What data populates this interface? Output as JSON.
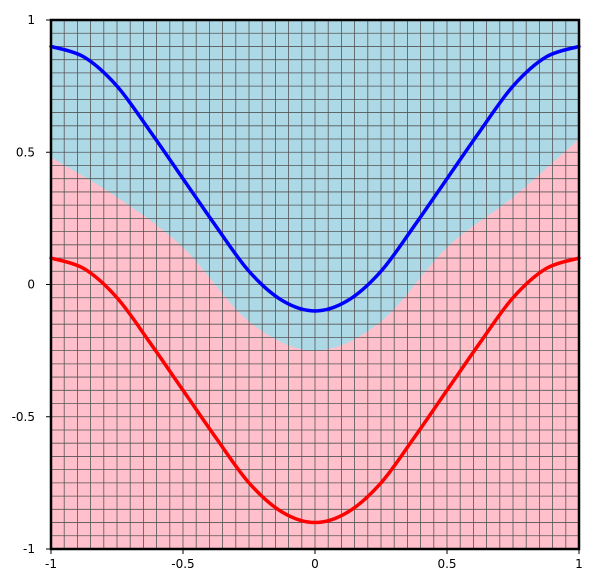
{
  "chart_data": {
    "type": "line",
    "title": "",
    "xlabel": "",
    "ylabel": "",
    "xlim": [
      -1,
      1
    ],
    "ylim": [
      -1,
      1
    ],
    "grid": true,
    "grid_step": 0.05,
    "x_ticks": [
      -1,
      -0.5,
      0,
      0.5,
      1
    ],
    "x_tick_labels": [
      "-1",
      "-0.5",
      "0",
      "0.5",
      "1"
    ],
    "y_ticks": [
      1,
      0.5,
      0,
      -0.5,
      -1
    ],
    "y_tick_labels": [
      "1",
      "0.5",
      "0",
      "-0.5",
      "-1"
    ],
    "regions": [
      {
        "color": "#add8e6",
        "description_points": {
          "x": [
            -1,
            -0.75,
            -0.5,
            -0.25,
            0,
            0.25,
            0.5,
            0.75,
            1
          ],
          "y": [
            0.48,
            0.33,
            0.14,
            -0.14,
            -0.25,
            -0.14,
            0.14,
            0.33,
            0.55
          ]
        }
      },
      {
        "color": "#ffc0cb"
      }
    ],
    "series": [
      {
        "color": "#0000ff",
        "x": [
          -1,
          -0.875,
          -0.75,
          -0.625,
          -0.5,
          -0.375,
          -0.25,
          -0.125,
          0,
          0.125,
          0.25,
          0.375,
          0.5,
          0.625,
          0.75,
          0.875,
          1
        ],
        "y": [
          0.9,
          0.86,
          0.75,
          0.58,
          0.4,
          0.22,
          0.05,
          -0.06,
          -0.1,
          -0.06,
          0.05,
          0.22,
          0.4,
          0.58,
          0.75,
          0.86,
          0.9
        ]
      },
      {
        "color": "#ff0000",
        "x": [
          -1,
          -0.875,
          -0.75,
          -0.625,
          -0.5,
          -0.375,
          -0.25,
          -0.125,
          0,
          0.125,
          0.25,
          0.375,
          0.5,
          0.625,
          0.75,
          0.875,
          1
        ],
        "y": [
          0.1,
          0.06,
          -0.05,
          -0.22,
          -0.4,
          -0.58,
          -0.75,
          -0.86,
          -0.9,
          -0.86,
          -0.75,
          -0.58,
          -0.4,
          -0.22,
          -0.05,
          0.06,
          0.1
        ]
      }
    ]
  }
}
